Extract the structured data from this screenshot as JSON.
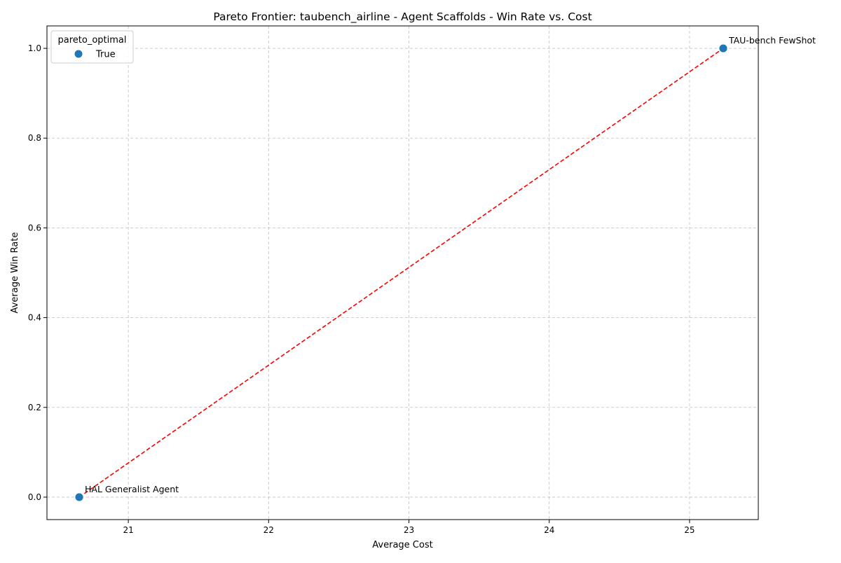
{
  "chart_data": {
    "type": "scatter",
    "title": "Pareto Frontier: taubench_airline - Agent Scaffolds - Win Rate vs. Cost",
    "xlabel": "Average Cost",
    "ylabel": "Average Win Rate",
    "xlim": [
      20.42,
      25.49
    ],
    "ylim": [
      -0.05,
      1.05
    ],
    "x_ticks": [
      21,
      22,
      23,
      24,
      25
    ],
    "y_ticks": [
      0.0,
      0.2,
      0.4,
      0.6,
      0.8,
      1.0
    ],
    "grid": true,
    "legend": {
      "title": "pareto_optimal",
      "placement": "top-left",
      "entries": [
        {
          "label": "True",
          "color": "#1f77b4"
        }
      ]
    },
    "points": [
      {
        "label": "HAL Generalist Agent",
        "x": 20.65,
        "y": 0.0,
        "pareto_optimal": "True"
      },
      {
        "label": "TAU-bench FewShot",
        "x": 25.24,
        "y": 1.0,
        "pareto_optimal": "True"
      }
    ],
    "frontier": {
      "style": "dashed",
      "color": "#ff0000",
      "x": [
        20.65,
        25.24
      ],
      "y": [
        0.0,
        1.0
      ]
    },
    "colors": {
      "point": "#1f77b4",
      "frontier": "#ff0000",
      "grid": "#b0b0b0"
    }
  }
}
